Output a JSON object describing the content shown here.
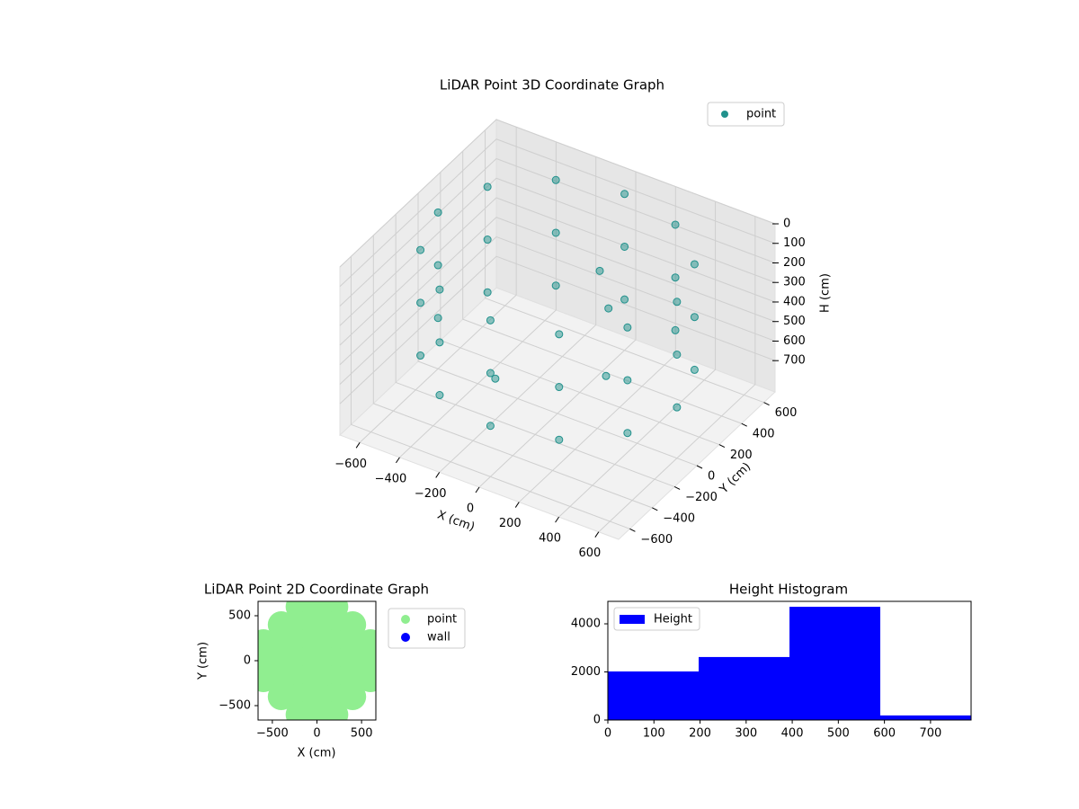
{
  "chart_data": [
    {
      "type": "scatter3d",
      "title": "LiDAR Point 3D Coordinate Graph",
      "x_label": "X (cm)",
      "y_label": "Y (cm)",
      "z_label": "H (cm)",
      "legend": "point",
      "legend_position": "upper right",
      "color": "#21918c",
      "xlim": [
        -700,
        700
      ],
      "ylim": [
        -700,
        700
      ],
      "zlim": [
        860,
        0
      ],
      "xticks": [
        {
          "value": -600,
          "label": "−600"
        },
        {
          "value": -400,
          "label": "−400"
        },
        {
          "value": -200,
          "label": "−200"
        },
        0,
        200,
        400,
        600
      ],
      "yticks": [
        {
          "value": -600,
          "label": "−600"
        },
        {
          "value": -400,
          "label": "−400"
        },
        {
          "value": -200,
          "label": "−200"
        },
        0,
        200,
        400,
        600
      ],
      "zticks": [
        0,
        100,
        200,
        300,
        400,
        500,
        600,
        700
      ],
      "x": [
        600,
        520,
        300,
        0,
        -300,
        -520,
        -600,
        -520,
        -300,
        0,
        300,
        520,
        600,
        520,
        300,
        0,
        -300,
        -520,
        -600,
        -520,
        -300,
        0,
        300,
        520,
        600,
        520,
        300,
        0,
        -300,
        -520,
        -600,
        -520,
        -300,
        0,
        300,
        520,
        200,
        100,
        300,
        -200
      ],
      "y": [
        0,
        300,
        520,
        600,
        520,
        300,
        0,
        -300,
        -520,
        -600,
        -520,
        -300,
        0,
        300,
        520,
        600,
        520,
        300,
        0,
        -300,
        -520,
        -600,
        -520,
        -300,
        0,
        300,
        520,
        600,
        520,
        300,
        0,
        -300,
        -520,
        -600,
        -520,
        -300,
        100,
        200,
        -100,
        -200
      ],
      "z": [
        60,
        60,
        60,
        60,
        60,
        60,
        60,
        60,
        60,
        60,
        60,
        60,
        330,
        330,
        330,
        330,
        330,
        330,
        330,
        330,
        330,
        330,
        330,
        330,
        600,
        600,
        600,
        600,
        600,
        600,
        600,
        600,
        600,
        600,
        600,
        600,
        300,
        200,
        500,
        650
      ]
    },
    {
      "type": "scatter",
      "title": "LiDAR Point 2D Coordinate Graph",
      "x_label": "X (cm)",
      "y_label": "Y (cm)",
      "legend_position": "outside upper right",
      "xlim": [
        -660,
        660
      ],
      "ylim": [
        -660,
        660
      ],
      "xticks": [
        {
          "value": -500,
          "label": "−500"
        },
        0,
        500
      ],
      "yticks": [
        {
          "value": -500,
          "label": "−500"
        },
        0,
        500
      ],
      "series": [
        {
          "name": "point",
          "color": "#90ee90",
          "x": [
            -200,
            0,
            200,
            -400,
            -200,
            0,
            200,
            400,
            -600,
            -400,
            -200,
            0,
            200,
            400,
            600,
            -600,
            -400,
            -200,
            0,
            200,
            400,
            600,
            -600,
            -400,
            -200,
            0,
            200,
            400,
            600,
            -400,
            -200,
            0,
            200,
            400,
            -200,
            0,
            200
          ],
          "y": [
            600,
            600,
            600,
            400,
            400,
            400,
            400,
            400,
            200,
            200,
            200,
            200,
            200,
            200,
            200,
            0,
            0,
            0,
            0,
            0,
            0,
            0,
            -200,
            -200,
            -200,
            -200,
            -200,
            -200,
            -200,
            -400,
            -400,
            -400,
            -400,
            -400,
            -600,
            -600,
            -600
          ]
        },
        {
          "name": "wall",
          "color": "#0000ff",
          "x": [],
          "y": []
        }
      ]
    },
    {
      "type": "histogram",
      "title": "Height Histogram",
      "legend": "Height",
      "legend_position": "upper left",
      "color": "#0000ff",
      "bins": [
        0,
        197,
        394,
        591,
        788
      ],
      "counts": [
        2020,
        2620,
        4710,
        190
      ],
      "xlim": [
        0,
        788
      ],
      "ylim": [
        0,
        4935
      ],
      "xticks": [
        0,
        100,
        200,
        300,
        400,
        500,
        600,
        700
      ],
      "yticks": [
        0,
        2000,
        4000
      ]
    }
  ]
}
